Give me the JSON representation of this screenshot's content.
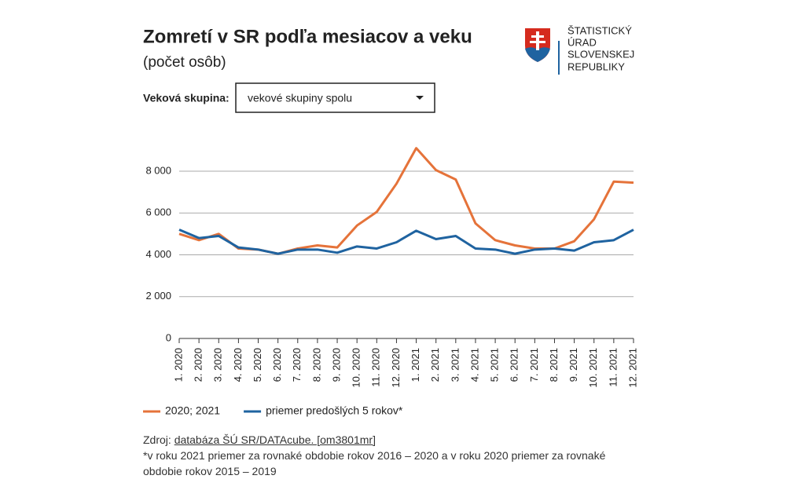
{
  "header": {
    "logo_lines": [
      "ŠTATISTICKÝ",
      "ÚRAD",
      "SLOVENSKEJ",
      "REPUBLIKY"
    ]
  },
  "filter": {
    "label": "Veková skupina:",
    "selected": "vekové skupiny spolu"
  },
  "chart_data": {
    "type": "line",
    "title": "Zomretí v SR podľa mesiacov a veku",
    "subtitle": "(počet osôb)",
    "categories": [
      "1. 2020",
      "2. 2020",
      "3. 2020",
      "4. 2020",
      "5. 2020",
      "6. 2020",
      "7. 2020",
      "8. 2020",
      "9. 2020",
      "10. 2020",
      "11. 2020",
      "12. 2020",
      "1. 2021",
      "2. 2021",
      "3. 2021",
      "4. 2021",
      "5. 2021",
      "6. 2021",
      "7. 2021",
      "8. 2021",
      "9. 2021",
      "10. 2021",
      "11. 2021",
      "12. 2021"
    ],
    "series": [
      {
        "name": "2020; 2021",
        "color": "#e5733a",
        "values": [
          5000,
          4700,
          5000,
          4300,
          4250,
          4050,
          4300,
          4450,
          4350,
          5400,
          6050,
          7400,
          9100,
          8050,
          7600,
          5500,
          4700,
          4450,
          4300,
          4300,
          4650,
          5700,
          7500,
          7450
        ]
      },
      {
        "name": "priemer predošlých 5 rokov*",
        "color": "#1f63a0",
        "values": [
          5200,
          4800,
          4900,
          4350,
          4250,
          4050,
          4250,
          4250,
          4100,
          4400,
          4300,
          4600,
          5150,
          4750,
          4900,
          4300,
          4250,
          4050,
          4250,
          4300,
          4200,
          4600,
          4700,
          5200
        ]
      }
    ],
    "ylim": [
      0,
      9200
    ],
    "yticks": [
      0,
      {
        "value": 2000,
        "label": "2 000"
      },
      {
        "value": 4000,
        "label": "4 000"
      },
      {
        "value": 6000,
        "label": "6 000"
      },
      {
        "value": 8000,
        "label": "8 000"
      }
    ],
    "grid": true
  },
  "source": {
    "prefix": "Zdroj:",
    "link": "databáza ŠÚ SR/DATAcube. [om3801mr]"
  },
  "note": "*v roku 2021 priemer za rovnaké obdobie rokov 2016 – 2020 a v roku 2020 priemer za rovnaké obdobie rokov 2015 – 2019"
}
